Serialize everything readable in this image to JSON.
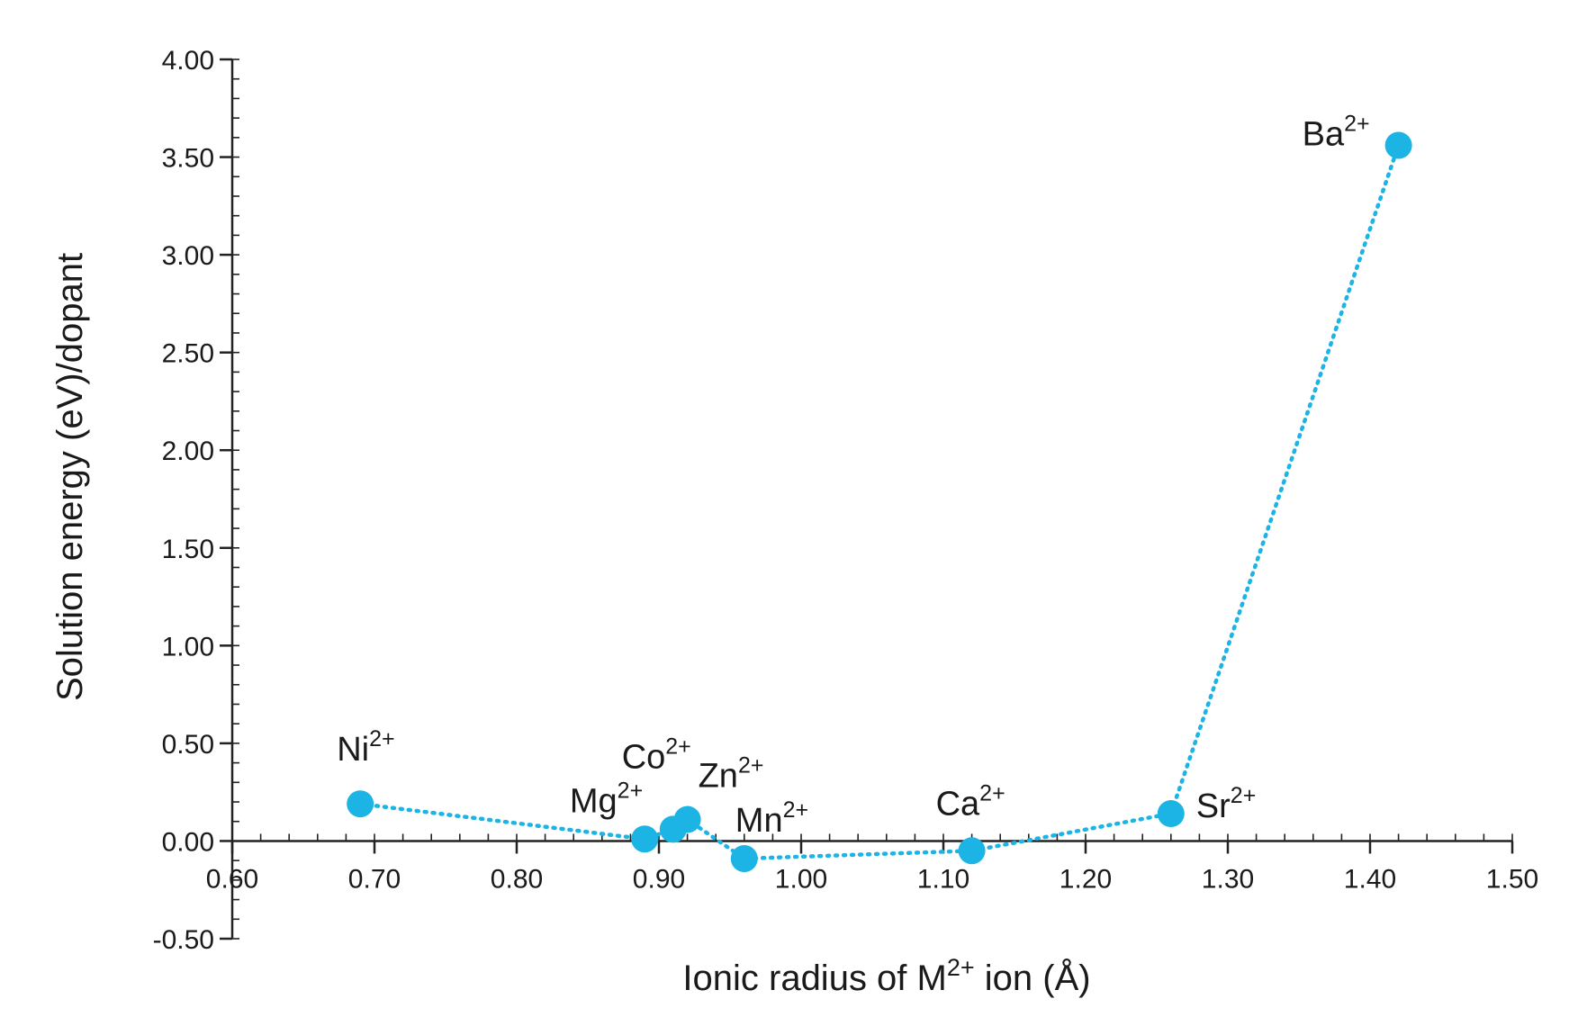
{
  "chart_data": {
    "type": "scatter",
    "title": "",
    "xlabel": "Ionic radius of M2+ ion (Å)",
    "xlabel_parts": {
      "before": "Ionic radius of M",
      "sup": "2+",
      "after": " ion (Å)"
    },
    "ylabel": "Solution energy (eV)/dopant",
    "xlim": [
      0.6,
      1.5
    ],
    "ylim": [
      -0.5,
      4.0
    ],
    "x_ticks": [
      "0.60",
      "0.70",
      "0.80",
      "0.90",
      "1.00",
      "1.10",
      "1.20",
      "1.30",
      "1.40",
      "1.50"
    ],
    "y_ticks": [
      "-0.50",
      "0.00",
      "0.50",
      "1.00",
      "1.50",
      "2.00",
      "2.50",
      "3.00",
      "3.50",
      "4.00"
    ],
    "grid": false,
    "legend": "none",
    "line_style": "dotted",
    "color": "#1cb4e4",
    "series": [
      {
        "points": [
          {
            "label": "Ni",
            "charge": "2+",
            "x": 0.69,
            "y": 0.19
          },
          {
            "label": "Mg",
            "charge": "2+",
            "x": 0.89,
            "y": 0.01
          },
          {
            "label": "Co",
            "charge": "2+",
            "x": 0.91,
            "y": 0.06
          },
          {
            "label": "Zn",
            "charge": "2+",
            "x": 0.92,
            "y": 0.11
          },
          {
            "label": "Mn",
            "charge": "2+",
            "x": 0.96,
            "y": -0.09
          },
          {
            "label": "Ca",
            "charge": "2+",
            "x": 1.12,
            "y": -0.05
          },
          {
            "label": "Sr",
            "charge": "2+",
            "x": 1.26,
            "y": 0.14
          },
          {
            "label": "Ba",
            "charge": "2+",
            "x": 1.42,
            "y": 3.56
          }
        ]
      }
    ]
  }
}
